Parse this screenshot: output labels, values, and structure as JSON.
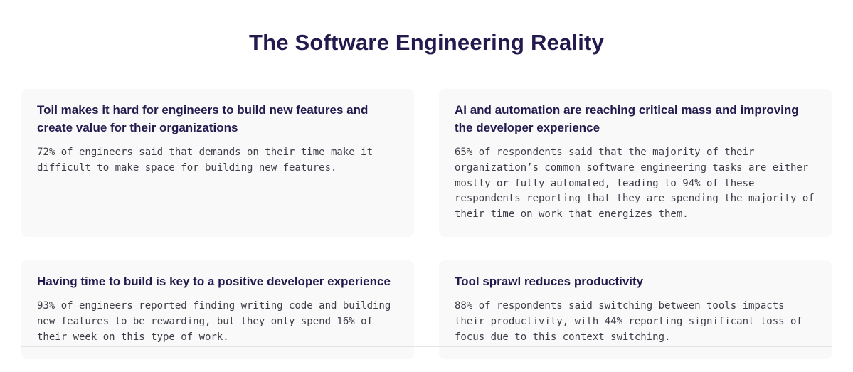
{
  "page": {
    "title": "The Software Engineering Reality"
  },
  "colors": {
    "heading": "#241a4e",
    "body_text": "#3d3d47",
    "card_background": "#f9f9fa",
    "divider": "#e4e4e8"
  },
  "cards": [
    {
      "heading": "Toil makes it hard for engineers to build new features and create value for their organizations",
      "body": "72% of engineers said that demands on their time make it difficult to make space for building new features."
    },
    {
      "heading": "AI and automation are reaching critical mass and improving the developer experience",
      "body": "65% of respondents said that the majority of their organization’s common software engineering tasks are either mostly or fully automated, leading to 94% of these respondents reporting that they are spending the majority of their time on work that energizes them."
    },
    {
      "heading": "Having time to build is key to a positive developer experience",
      "body": "93% of engineers reported finding writing code and building new features to be rewarding, but they only spend 16% of their week on this type of work."
    },
    {
      "heading": "Tool sprawl reduces productivity",
      "body": "88% of respondents said switching between tools impacts their productivity, with 44% reporting significant loss of focus due to this context switching."
    }
  ]
}
